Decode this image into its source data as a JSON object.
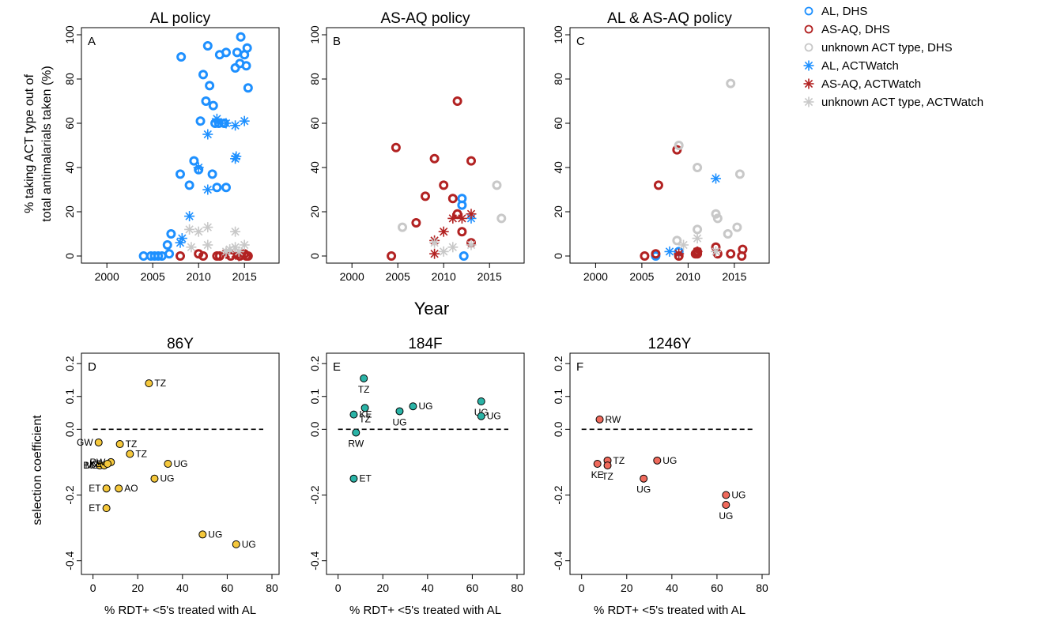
{
  "colors": {
    "AL": "#1e90ff",
    "ASAQ": "#b22222",
    "unknown": "#c8c8c8",
    "86Y": "#f5c83c",
    "184F": "#2ab3a6",
    "1246Y": "#ef6a5c"
  },
  "legend": [
    {
      "label": "AL, DHS",
      "marker": "circle",
      "color_key": "AL"
    },
    {
      "label": "AS-AQ, DHS",
      "marker": "circle",
      "color_key": "ASAQ"
    },
    {
      "label": "unknown ACT type, DHS",
      "marker": "circle",
      "color_key": "unknown"
    },
    {
      "label": "AL, ACTWatch",
      "marker": "star",
      "color_key": "AL"
    },
    {
      "label": "AS-AQ, ACTWatch",
      "marker": "star",
      "color_key": "ASAQ"
    },
    {
      "label": "unknown ACT type, ACTWatch",
      "marker": "star",
      "color_key": "unknown"
    }
  ],
  "top_ylabel_line1": "% taking ACT type out of",
  "top_ylabel_line2": "total antimalarials taken (%)",
  "top_xlabel": "Year",
  "bottom_ylabel": "selection coefficient",
  "chart_data": [
    {
      "type": "scatter",
      "panel": "A",
      "title": "AL policy",
      "xlim": [
        1998,
        2018
      ],
      "ylim": [
        0,
        100
      ],
      "xticks": [
        2000,
        2005,
        2010,
        2015
      ],
      "yticks": [
        0,
        20,
        40,
        60,
        80,
        100
      ],
      "series": [
        {
          "name": "AL, DHS",
          "marker": "circle",
          "color_key": "AL",
          "points": [
            [
              2004,
              0
            ],
            [
              2004.8,
              0
            ],
            [
              2005.2,
              0
            ],
            [
              2005.6,
              0
            ],
            [
              2006,
              0
            ],
            [
              2006.6,
              5
            ],
            [
              2006.8,
              1
            ],
            [
              2007,
              10
            ],
            [
              2008,
              37
            ],
            [
              2008.1,
              90
            ],
            [
              2009,
              32
            ],
            [
              2009.5,
              43
            ],
            [
              2010,
              39
            ],
            [
              2010.2,
              61
            ],
            [
              2010.5,
              82
            ],
            [
              2010.8,
              70
            ],
            [
              2011,
              95
            ],
            [
              2011.2,
              77
            ],
            [
              2011.5,
              37
            ],
            [
              2011.6,
              68
            ],
            [
              2011.8,
              60
            ],
            [
              2012,
              31
            ],
            [
              2012.2,
              60
            ],
            [
              2012.3,
              91
            ],
            [
              2012.8,
              60
            ],
            [
              2013,
              31
            ],
            [
              2013,
              92
            ],
            [
              2014,
              85
            ],
            [
              2014.2,
              92
            ],
            [
              2014.5,
              87
            ],
            [
              2014.6,
              99
            ],
            [
              2015,
              91
            ],
            [
              2015.2,
              86
            ],
            [
              2015.3,
              94
            ],
            [
              2015.4,
              76
            ]
          ]
        },
        {
          "name": "AS-AQ, DHS",
          "marker": "circle",
          "color_key": "ASAQ",
          "points": [
            [
              2008,
              0
            ],
            [
              2010,
              1
            ],
            [
              2010.5,
              0
            ],
            [
              2012,
              0
            ],
            [
              2012.3,
              0
            ],
            [
              2013.5,
              0
            ],
            [
              2014.5,
              0
            ],
            [
              2015,
              1
            ],
            [
              2015.2,
              0
            ],
            [
              2015.4,
              0
            ]
          ]
        },
        {
          "name": "unknown ACT type, DHS",
          "marker": "circle",
          "color_key": "unknown",
          "points": []
        },
        {
          "name": "AL, ACTWatch",
          "marker": "star",
          "color_key": "AL",
          "points": [
            [
              2008,
              6
            ],
            [
              2008.2,
              8
            ],
            [
              2009,
              18
            ],
            [
              2010,
              40
            ],
            [
              2011,
              55
            ],
            [
              2011,
              30
            ],
            [
              2012,
              62
            ],
            [
              2013,
              60
            ],
            [
              2014,
              59
            ],
            [
              2014,
              44
            ],
            [
              2014.1,
              45
            ],
            [
              2015,
              61
            ]
          ]
        },
        {
          "name": "AS-AQ, ACTWatch",
          "marker": "star",
          "color_key": "ASAQ",
          "points": [
            [
              2013,
              1
            ],
            [
              2014,
              1
            ],
            [
              2014.4,
              0
            ]
          ]
        },
        {
          "name": "unknown ACT type, ACTWatch",
          "marker": "star",
          "color_key": "unknown",
          "points": [
            [
              2009,
              12
            ],
            [
              2009.2,
              4
            ],
            [
              2010,
              11
            ],
            [
              2011,
              13
            ],
            [
              2011,
              5
            ],
            [
              2013,
              2
            ],
            [
              2013.4,
              3
            ],
            [
              2014,
              11
            ],
            [
              2014,
              4
            ],
            [
              2014.4,
              2
            ],
            [
              2015,
              5
            ]
          ]
        }
      ]
    },
    {
      "type": "scatter",
      "panel": "B",
      "title": "AS-AQ policy",
      "xlim": [
        1998,
        2018
      ],
      "ylim": [
        0,
        100
      ],
      "xticks": [
        2000,
        2005,
        2010,
        2015
      ],
      "yticks": [
        0,
        20,
        40,
        60,
        80,
        100
      ],
      "series": [
        {
          "name": "AL, DHS",
          "marker": "circle",
          "color_key": "AL",
          "points": [
            [
              2012,
              26
            ],
            [
              2012,
              23
            ],
            [
              2012.2,
              0
            ]
          ]
        },
        {
          "name": "AS-AQ, DHS",
          "marker": "circle",
          "color_key": "ASAQ",
          "points": [
            [
              2004.3,
              0
            ],
            [
              2004.8,
              49
            ],
            [
              2007,
              15
            ],
            [
              2008,
              27
            ],
            [
              2009,
              44
            ],
            [
              2010,
              32
            ],
            [
              2011,
              26
            ],
            [
              2011.5,
              70
            ],
            [
              2011.5,
              19
            ],
            [
              2012,
              11
            ],
            [
              2013,
              43
            ],
            [
              2013,
              6
            ]
          ]
        },
        {
          "name": "unknown ACT type, DHS",
          "marker": "circle",
          "color_key": "unknown",
          "points": [
            [
              2005.5,
              13
            ],
            [
              2015.8,
              32
            ],
            [
              2016.3,
              17
            ]
          ]
        },
        {
          "name": "AL, ACTWatch",
          "marker": "star",
          "color_key": "AL",
          "points": [
            [
              2013,
              17
            ]
          ]
        },
        {
          "name": "AS-AQ, ACTWatch",
          "marker": "star",
          "color_key": "ASAQ",
          "points": [
            [
              2009,
              7
            ],
            [
              2009,
              1
            ],
            [
              2010,
              11
            ],
            [
              2011,
              17
            ],
            [
              2012,
              17
            ],
            [
              2013,
              19
            ]
          ]
        },
        {
          "name": "unknown ACT type, ACTWatch",
          "marker": "star",
          "color_key": "unknown",
          "points": [
            [
              2009,
              6
            ],
            [
              2010,
              2
            ],
            [
              2011,
              4
            ],
            [
              2013,
              5
            ]
          ]
        }
      ]
    },
    {
      "type": "scatter",
      "panel": "C",
      "title": "AL & AS-AQ policy",
      "xlim": [
        1998,
        2018
      ],
      "ylim": [
        0,
        100
      ],
      "xticks": [
        2000,
        2005,
        2010,
        2015
      ],
      "yticks": [
        0,
        20,
        40,
        60,
        80,
        100
      ],
      "series": [
        {
          "name": "AL, DHS",
          "marker": "circle",
          "color_key": "AL",
          "points": [
            [
              2006.5,
              0
            ],
            [
              2009,
              2
            ]
          ]
        },
        {
          "name": "AS-AQ, DHS",
          "marker": "circle",
          "color_key": "ASAQ",
          "points": [
            [
              2005.3,
              0
            ],
            [
              2006.5,
              1
            ],
            [
              2006.8,
              32
            ],
            [
              2008.8,
              48
            ],
            [
              2009,
              0
            ],
            [
              2010.8,
              1
            ],
            [
              2011,
              2
            ],
            [
              2011,
              1
            ],
            [
              2013,
              4
            ],
            [
              2013.2,
              1
            ],
            [
              2014.6,
              1
            ],
            [
              2015.8,
              0
            ],
            [
              2015.9,
              3
            ]
          ]
        },
        {
          "name": "unknown ACT type, DHS",
          "marker": "circle",
          "color_key": "unknown",
          "points": [
            [
              2008.8,
              7
            ],
            [
              2009,
              50
            ],
            [
              2011,
              40
            ],
            [
              2011,
              12
            ],
            [
              2013,
              19
            ],
            [
              2013.2,
              17
            ],
            [
              2014.3,
              10
            ],
            [
              2014.6,
              78
            ],
            [
              2015.3,
              13
            ],
            [
              2015.6,
              37
            ]
          ]
        },
        {
          "name": "AL, ACTWatch",
          "marker": "star",
          "color_key": "AL",
          "points": [
            [
              2008,
              2
            ],
            [
              2013,
              35
            ]
          ]
        },
        {
          "name": "AS-AQ, ACTWatch",
          "marker": "star",
          "color_key": "ASAQ",
          "points": [
            [
              2009,
              1
            ],
            [
              2011,
              2
            ]
          ]
        },
        {
          "name": "unknown ACT type, ACTWatch",
          "marker": "star",
          "color_key": "unknown",
          "points": [
            [
              2009.5,
              5
            ],
            [
              2011,
              8
            ],
            [
              2013,
              2
            ]
          ]
        }
      ]
    },
    {
      "type": "scatter",
      "panel": "D",
      "title": "86Y",
      "xlabel": "% RDT+ <5's treated with AL",
      "xlim": [
        -2,
        80
      ],
      "ylim": [
        -0.42,
        0.21
      ],
      "xticks": [
        0,
        20,
        40,
        60,
        80
      ],
      "yticks": [
        -0.4,
        -0.2,
        0.0,
        0.1,
        0.2
      ],
      "ytick_labels": [
        "-0.4",
        "-0.2",
        "0.0",
        "0.1",
        "0.2"
      ],
      "reference_line": 0,
      "color_key": "86Y",
      "points": [
        {
          "x": 25,
          "y": 0.14,
          "label": "TZ"
        },
        {
          "x": 2.5,
          "y": -0.04,
          "label": "GW"
        },
        {
          "x": 12,
          "y": -0.045,
          "label": "TZ"
        },
        {
          "x": 16.5,
          "y": -0.075,
          "label": "TZ"
        },
        {
          "x": 3,
          "y": -0.11,
          "label": "BJ"
        },
        {
          "x": 5,
          "y": -0.11,
          "label": "MZ"
        },
        {
          "x": 8,
          "y": -0.1,
          "label": "RW"
        },
        {
          "x": 6.5,
          "y": -0.105,
          "label": "KE"
        },
        {
          "x": 33.5,
          "y": -0.105,
          "label": "UG"
        },
        {
          "x": 27.5,
          "y": -0.15,
          "label": "UG"
        },
        {
          "x": 6,
          "y": -0.18,
          "label": "ET"
        },
        {
          "x": 11.5,
          "y": -0.18,
          "label": "AO"
        },
        {
          "x": 6,
          "y": -0.24,
          "label": "ET"
        },
        {
          "x": 49,
          "y": -0.32,
          "label": "UG"
        },
        {
          "x": 64,
          "y": -0.35,
          "label": "UG"
        }
      ]
    },
    {
      "type": "scatter",
      "panel": "E",
      "title": "184F",
      "xlabel": "% RDT+ <5's treated with AL",
      "xlim": [
        -2,
        80
      ],
      "ylim": [
        -0.42,
        0.21
      ],
      "xticks": [
        0,
        20,
        40,
        60,
        80
      ],
      "yticks": [
        -0.4,
        -0.2,
        0.0,
        0.1,
        0.2
      ],
      "ytick_labels": [
        "-0.4",
        "-0.2",
        "0.0",
        "0.1",
        "0.2"
      ],
      "reference_line": 0,
      "color_key": "184F",
      "points": [
        {
          "x": 11.5,
          "y": 0.155,
          "label": "TZ"
        },
        {
          "x": 12,
          "y": 0.065,
          "label": "TZ"
        },
        {
          "x": 7,
          "y": 0.045,
          "label": "KE"
        },
        {
          "x": 8,
          "y": -0.01,
          "label": "RW"
        },
        {
          "x": 7,
          "y": -0.15,
          "label": "ET"
        },
        {
          "x": 27.5,
          "y": 0.055,
          "label": "UG"
        },
        {
          "x": 33.5,
          "y": 0.07,
          "label": "UG"
        },
        {
          "x": 64,
          "y": 0.085,
          "label": "UG"
        },
        {
          "x": 64,
          "y": 0.04,
          "label": "UG"
        }
      ]
    },
    {
      "type": "scatter",
      "panel": "F",
      "title": "1246Y",
      "xlabel": "% RDT+ <5's treated with AL",
      "xlim": [
        -2,
        80
      ],
      "ylim": [
        -0.42,
        0.21
      ],
      "xticks": [
        0,
        20,
        40,
        60,
        80
      ],
      "yticks": [
        -0.4,
        -0.2,
        0.0,
        0.1,
        0.2
      ],
      "ytick_labels": [
        "-0.4",
        "-0.2",
        "0.0",
        "0.1",
        "0.2"
      ],
      "reference_line": 0,
      "color_key": "1246Y",
      "points": [
        {
          "x": 8,
          "y": 0.03,
          "label": "RW"
        },
        {
          "x": 7,
          "y": -0.105,
          "label": "KE"
        },
        {
          "x": 11.5,
          "y": -0.095,
          "label": "TZ"
        },
        {
          "x": 11.5,
          "y": -0.11,
          "label": "TZ"
        },
        {
          "x": 33.5,
          "y": -0.095,
          "label": "UG"
        },
        {
          "x": 27.5,
          "y": -0.15,
          "label": "UG"
        },
        {
          "x": 64,
          "y": -0.2,
          "label": "UG"
        },
        {
          "x": 64,
          "y": -0.23,
          "label": "UG"
        }
      ]
    }
  ]
}
